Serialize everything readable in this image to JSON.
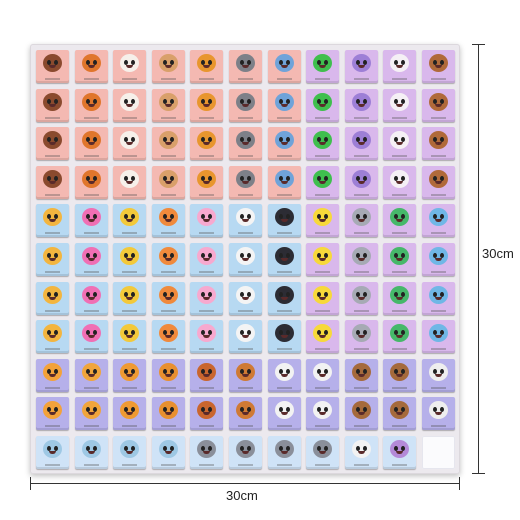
{
  "dimensions": {
    "width_label": "30cm",
    "height_label": "30cm"
  },
  "grid": {
    "rows": 11,
    "cols": 11,
    "empty_tiles": 1
  },
  "colors": {
    "board": "#ece9ee",
    "pink_tile": "#f4b9b2",
    "lilac_tile": "#d9b8ec",
    "blue_tile": "#b7d9f2",
    "violet_tile": "#b6b0ea",
    "light_blue_tile": "#cfe3f7"
  },
  "animal_columns": [
    {
      "animal": "hedgehog",
      "tile": "#f4b9b2",
      "face": "#8a4a2e"
    },
    {
      "animal": "fox",
      "tile": "#f4b9b2",
      "face": "#e0762c"
    },
    {
      "animal": "sheep",
      "tile": "#f4b9b2",
      "face": "#f6f0ea"
    },
    {
      "animal": "deer",
      "tile": "#f4b9b2",
      "face": "#d9a06a"
    },
    {
      "animal": "lion",
      "tile": "#f4b9b2",
      "face": "#e8962e"
    },
    {
      "animal": "raccoon",
      "tile": "#f4b9b2",
      "face": "#7d8088"
    },
    {
      "animal": "koala",
      "tile": "#f4b9b2",
      "face": "#6fa3d9"
    },
    {
      "animal": "frog",
      "tile": "#d9b8ec",
      "face": "#3fbf4e"
    },
    {
      "animal": "rhino",
      "tile": "#d9b8ec",
      "face": "#9d7fd6"
    },
    {
      "animal": "cow",
      "tile": "#d9b8ec",
      "face": "#f5f0f5"
    },
    {
      "animal": "monkey",
      "tile": "#d9b8ec",
      "face": "#b06a3a"
    }
  ]
}
